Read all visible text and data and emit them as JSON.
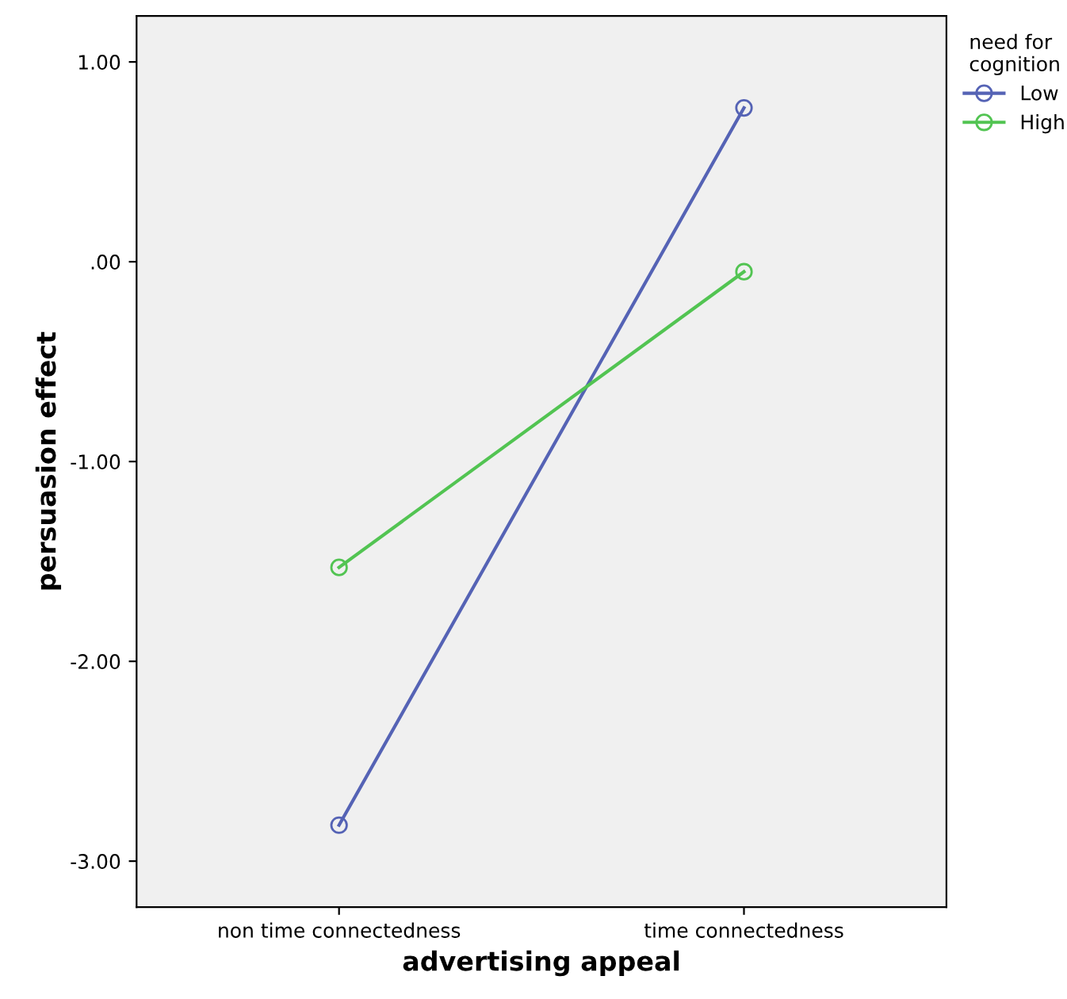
{
  "chart_data": {
    "type": "line",
    "xlabel": "advertising appeal",
    "ylabel": "persuasion effect",
    "legend_title": "need for\ncognition",
    "categories": [
      "non time connectedness",
      "time connectedness"
    ],
    "series": [
      {
        "name": "Low",
        "color": "#5563b5",
        "values": [
          -2.82,
          0.77
        ]
      },
      {
        "name": "High",
        "color": "#52c452",
        "values": [
          -1.53,
          -0.05
        ]
      }
    ],
    "ylim": [
      -3.23,
      1.23
    ],
    "yticks": [
      {
        "value": -3,
        "label": "-3.00"
      },
      {
        "value": -2,
        "label": "-2.00"
      },
      {
        "value": -1,
        "label": "-1.00"
      },
      {
        "value": 0,
        "label": ".00"
      },
      {
        "value": 1,
        "label": "1.00"
      }
    ],
    "marker": "circle",
    "line_style": "solid",
    "grid": false,
    "legend": "top right"
  }
}
